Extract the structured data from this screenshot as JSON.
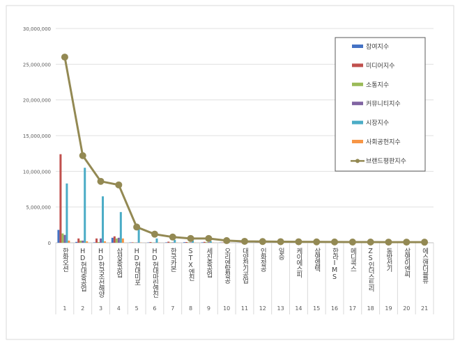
{
  "chart_data": {
    "type": "bar+line",
    "title": "",
    "xlabel": "",
    "ylabel": "",
    "ylim": [
      0,
      30000000
    ],
    "yticks": [
      "0",
      "5,000,000",
      "10,000,000",
      "15,000,000",
      "20,000,000",
      "25,000,000",
      "30,000,000"
    ],
    "grid": true,
    "legend_position": "top-right",
    "categories": [
      "한화오션",
      "HD현대중공업",
      "HD한국조선해양",
      "삼성중공업",
      "HD현대미포",
      "HD현대마린엔진",
      "한국카본",
      "STX엔진",
      "세진중공업",
      "오리엔탈정공",
      "대양전기공업",
      "인화정공",
      "일승",
      "케이에스피",
      "삼영엠텍",
      "한라IMS",
      "메디콕스",
      "ZS인더스트리",
      "동방선기",
      "삼영이엔씨",
      "에스앤더블류"
    ],
    "ranks": [
      "1",
      "2",
      "3",
      "4",
      "5",
      "6",
      "7",
      "8",
      "9",
      "10",
      "11",
      "12",
      "13",
      "14",
      "15",
      "16",
      "17",
      "18",
      "19",
      "20",
      "21"
    ],
    "series": [
      {
        "name": "참여지수",
        "color": "#4472C4",
        "values": [
          1800000,
          120000,
          60000,
          700000,
          50000,
          50000,
          60000,
          80000,
          60000,
          30000,
          20000,
          20000,
          10000,
          10000,
          10000,
          10000,
          10000,
          10000,
          10000,
          10000,
          10000
        ]
      },
      {
        "name": "미디어지수",
        "color": "#C0504D",
        "values": [
          12400000,
          600000,
          600000,
          900000,
          60000,
          100000,
          150000,
          100000,
          120000,
          40000,
          40000,
          20000,
          20000,
          20000,
          20000,
          20000,
          20000,
          20000,
          20000,
          20000,
          20000
        ]
      },
      {
        "name": "소통지수",
        "color": "#9BBB59",
        "values": [
          1300000,
          300000,
          100000,
          600000,
          40000,
          40000,
          60000,
          60000,
          80000,
          20000,
          20000,
          10000,
          10000,
          10000,
          10000,
          10000,
          10000,
          10000,
          10000,
          10000,
          10000
        ]
      },
      {
        "name": "커뮤니티지수",
        "color": "#8064A2",
        "values": [
          1100000,
          300000,
          600000,
          700000,
          40000,
          40000,
          60000,
          60000,
          80000,
          20000,
          20000,
          10000,
          10000,
          10000,
          10000,
          10000,
          10000,
          10000,
          10000,
          10000,
          10000
        ]
      },
      {
        "name": "시장지수",
        "color": "#4BACC6",
        "values": [
          8300000,
          10500000,
          6500000,
          4300000,
          1900000,
          600000,
          400000,
          300000,
          200000,
          150000,
          100000,
          80000,
          60000,
          60000,
          50000,
          50000,
          40000,
          40000,
          40000,
          40000,
          30000
        ]
      },
      {
        "name": "사회공헌지수",
        "color": "#F79646",
        "values": [
          300000,
          200000,
          200000,
          600000,
          30000,
          30000,
          30000,
          30000,
          30000,
          10000,
          10000,
          10000,
          10000,
          10000,
          10000,
          10000,
          10000,
          10000,
          10000,
          10000,
          10000
        ]
      }
    ],
    "line": {
      "name": "브랜드평판지수",
      "color": "#938953",
      "values": [
        26000000,
        12200000,
        8600000,
        8100000,
        2200000,
        1200000,
        800000,
        600000,
        600000,
        300000,
        200000,
        170000,
        150000,
        140000,
        120000,
        110000,
        100000,
        100000,
        90000,
        90000,
        80000
      ]
    }
  }
}
